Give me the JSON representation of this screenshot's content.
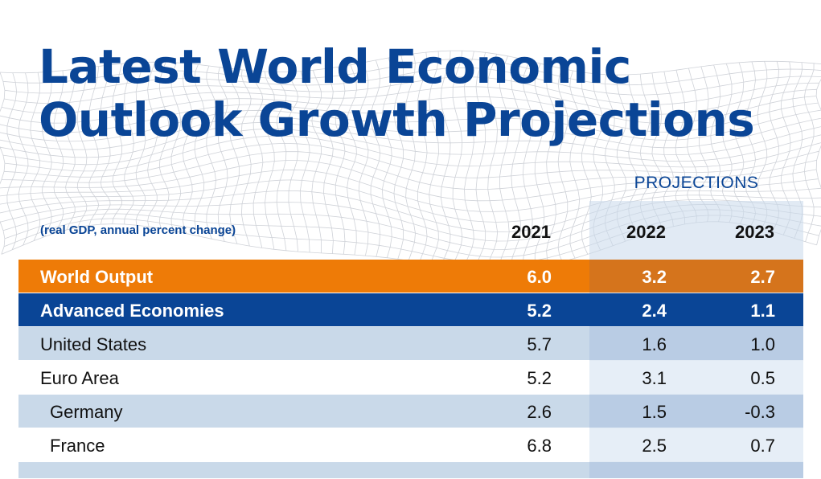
{
  "title": {
    "line1": "Latest World Economic",
    "line2": "Outlook Growth Projections"
  },
  "subtitle": "(real GDP, annual percent change)",
  "projections_label": "PROJECTIONS",
  "colors": {
    "brand_blue": "#0a4596",
    "orange": "#ee7b07",
    "light_row": "#c9d9e9"
  },
  "chart_data": {
    "type": "table",
    "title": "Latest World Economic Outlook Growth Projections",
    "subtitle": "(real GDP, annual percent change)",
    "group_label": "PROJECTIONS",
    "columns": [
      "2021",
      "2022",
      "2023"
    ],
    "rows": [
      {
        "label": "World Output",
        "values": [
          "6.0",
          "3.2",
          "2.7"
        ]
      },
      {
        "label": "Advanced Economies",
        "values": [
          "5.2",
          "2.4",
          "1.1"
        ]
      },
      {
        "label": "United States",
        "values": [
          "5.7",
          "1.6",
          "1.0"
        ]
      },
      {
        "label": "Euro Area",
        "values": [
          "5.2",
          "3.1",
          "0.5"
        ]
      },
      {
        "label": "Germany",
        "values": [
          "2.6",
          "1.5",
          "-0.3"
        ]
      },
      {
        "label": "France",
        "values": [
          "6.8",
          "2.5",
          "0.7"
        ]
      }
    ]
  }
}
